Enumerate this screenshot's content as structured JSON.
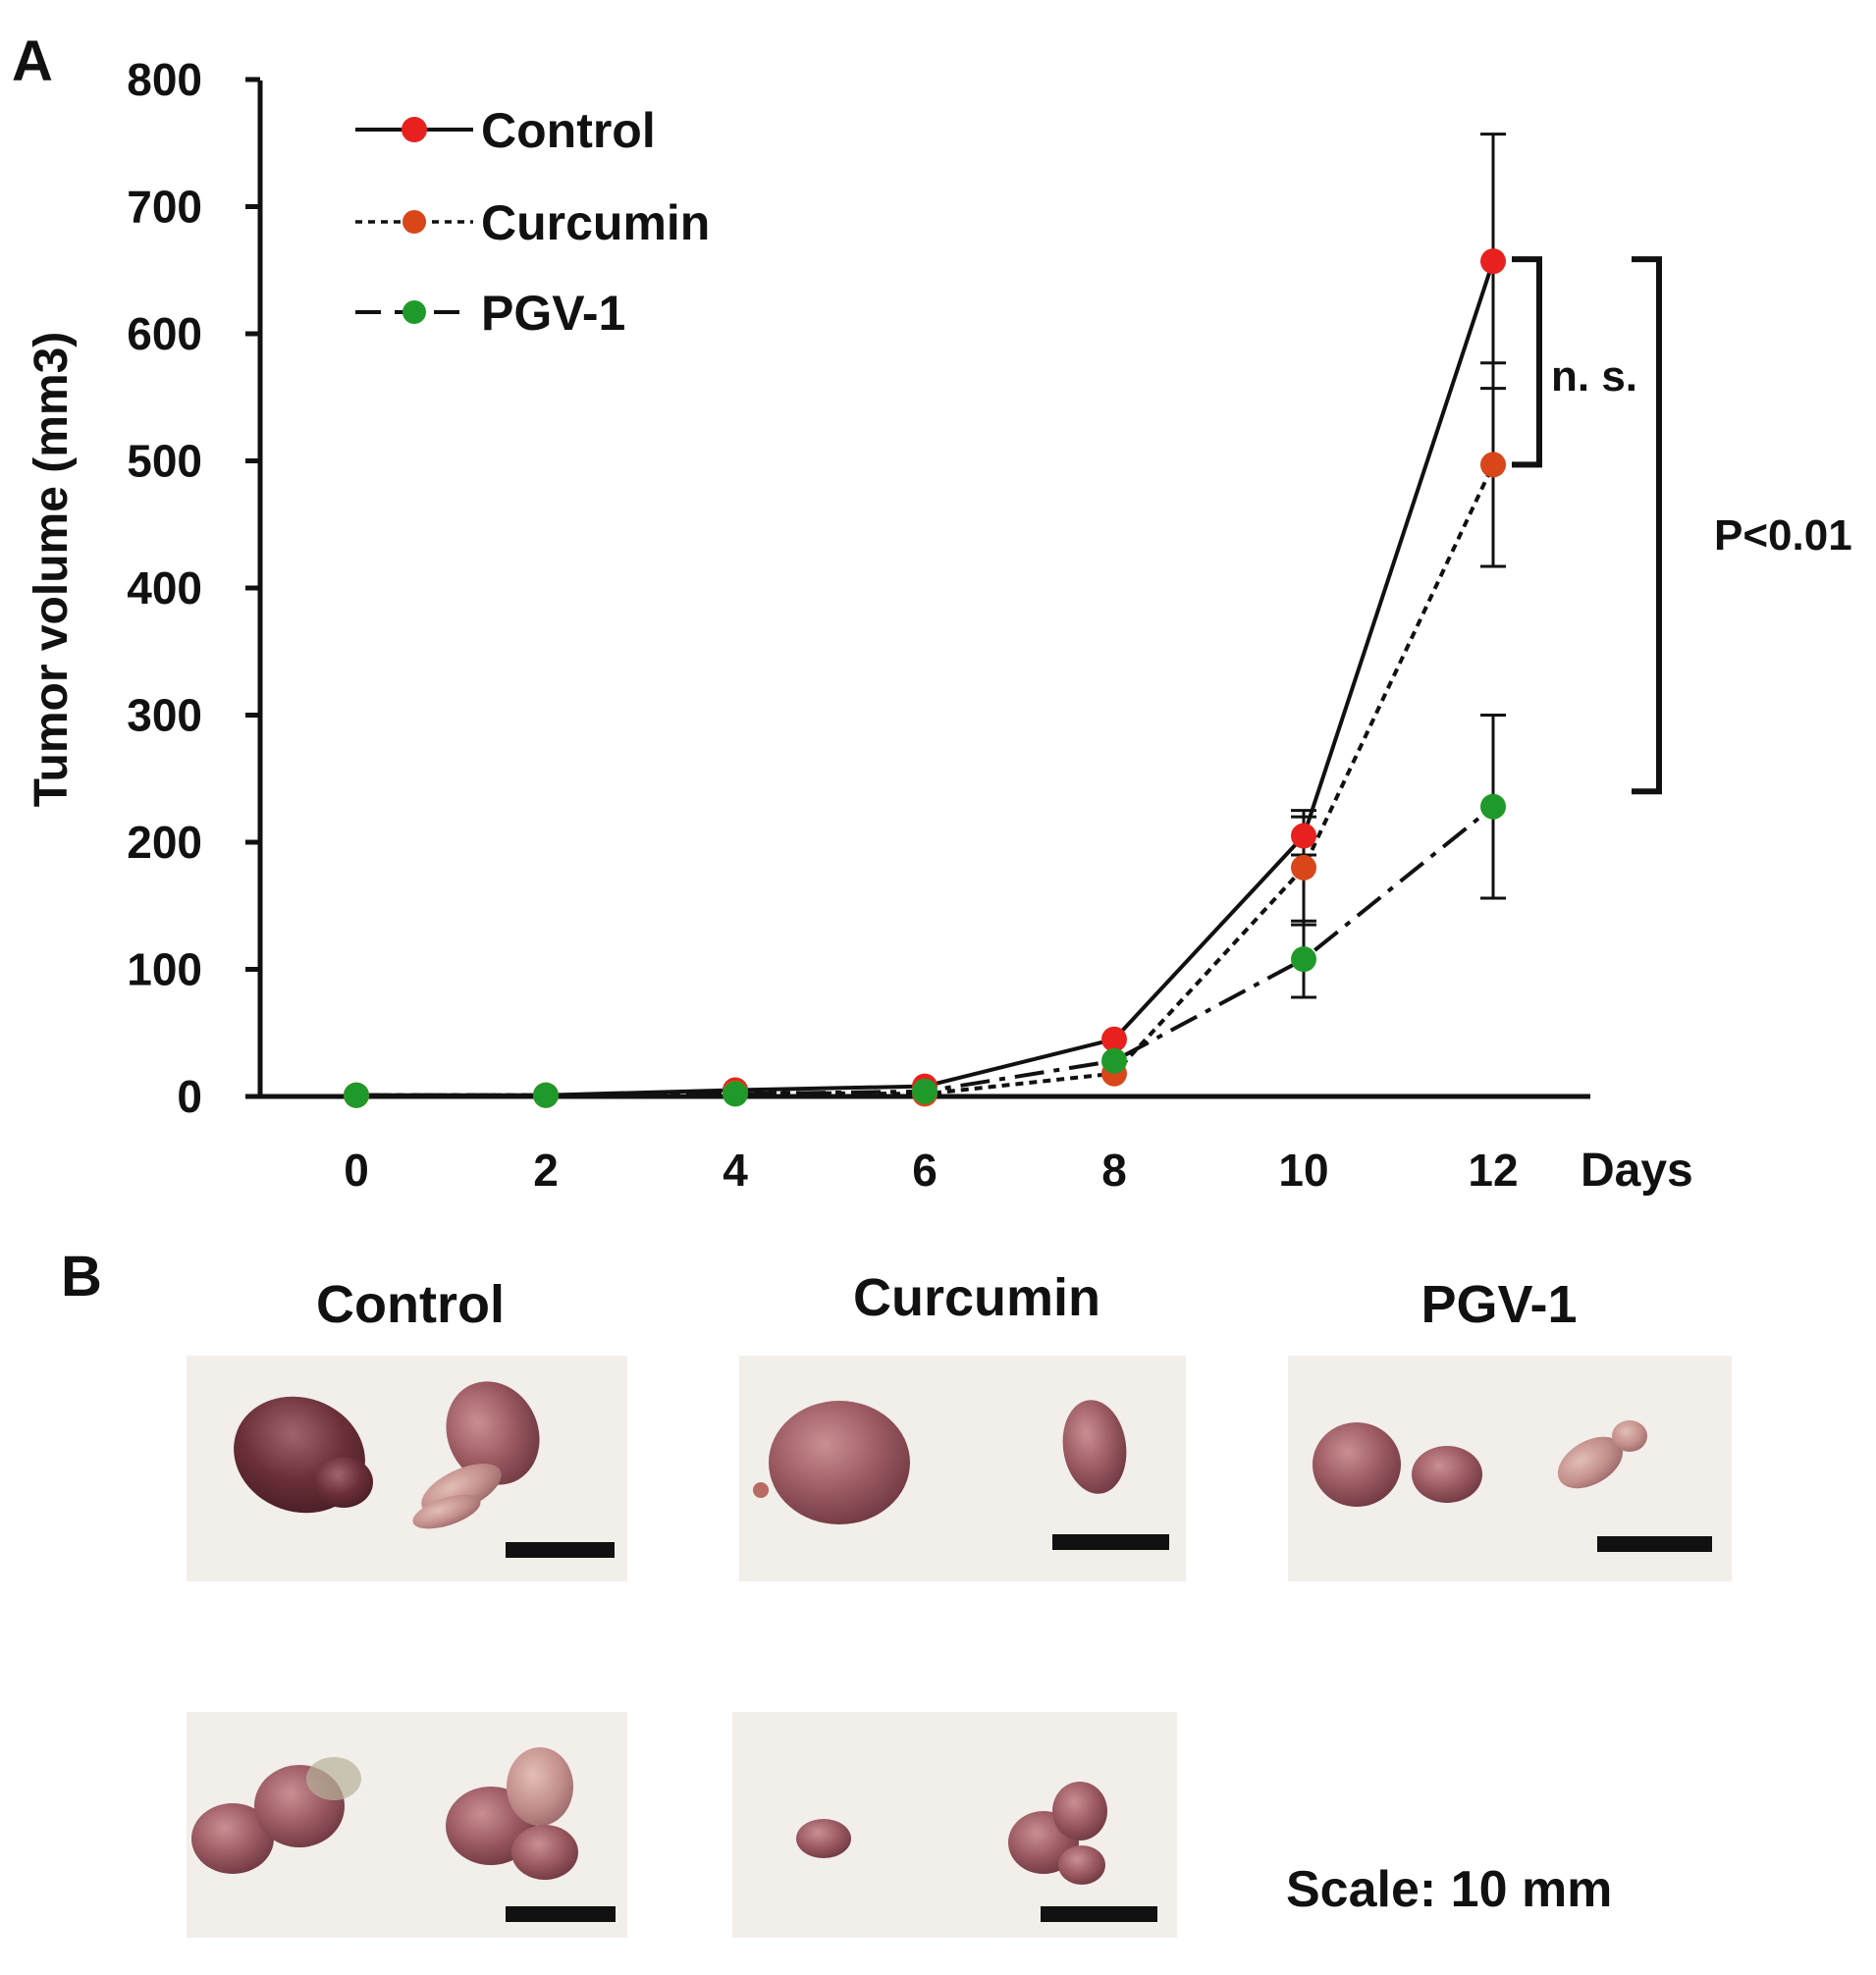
{
  "panel_a_label": "A",
  "panel_b_label": "B",
  "chart_data": {
    "type": "line",
    "title": "",
    "xlabel": "Days",
    "ylabel": "Tumor volume (mm3)",
    "x": [
      0,
      2,
      4,
      6,
      8,
      10,
      12
    ],
    "xlim": [
      -1,
      13
    ],
    "ylim": [
      0,
      800
    ],
    "yticks": [
      0,
      100,
      200,
      300,
      400,
      500,
      600,
      700,
      800
    ],
    "grid": false,
    "legend_position": "top-left",
    "series": [
      {
        "name": "Control",
        "color": "#e8211e",
        "line_style": "solid",
        "values": [
          1,
          1,
          5,
          8,
          45,
          205,
          657
        ],
        "error": [
          0,
          0,
          0,
          0,
          0,
          15,
          100
        ]
      },
      {
        "name": "Curcumin",
        "color": "#d9461a",
        "line_style": "dotted",
        "values": [
          1,
          1,
          3,
          2,
          18,
          180,
          497
        ],
        "error": [
          0,
          0,
          0,
          0,
          0,
          45,
          80
        ]
      },
      {
        "name": "PGV-1",
        "color": "#1f9a2a",
        "line_style": "dash-dot",
        "values": [
          1,
          1,
          2,
          4,
          28,
          108,
          228
        ],
        "error": [
          0,
          0,
          0,
          0,
          0,
          30,
          72
        ]
      }
    ],
    "annotations": [
      {
        "text": "n. s.",
        "bracket": [
          "Control",
          "Curcumin"
        ],
        "x": 12
      },
      {
        "text": "P<0.01",
        "bracket": [
          "Control",
          "PGV-1"
        ],
        "x": 12
      }
    ]
  },
  "panel_b": {
    "groups": [
      {
        "name": "Control",
        "tumors_row1": 2,
        "tumors_row2": 2
      },
      {
        "name": "Curcumin",
        "tumors_row1": 2,
        "tumors_row2": 2
      },
      {
        "name": "PGV-1",
        "tumors_row1": 3
      }
    ],
    "scale_text": "Scale: 10 mm",
    "photo_background": "#f1ede8",
    "tumor_color": "#8a4e56"
  }
}
